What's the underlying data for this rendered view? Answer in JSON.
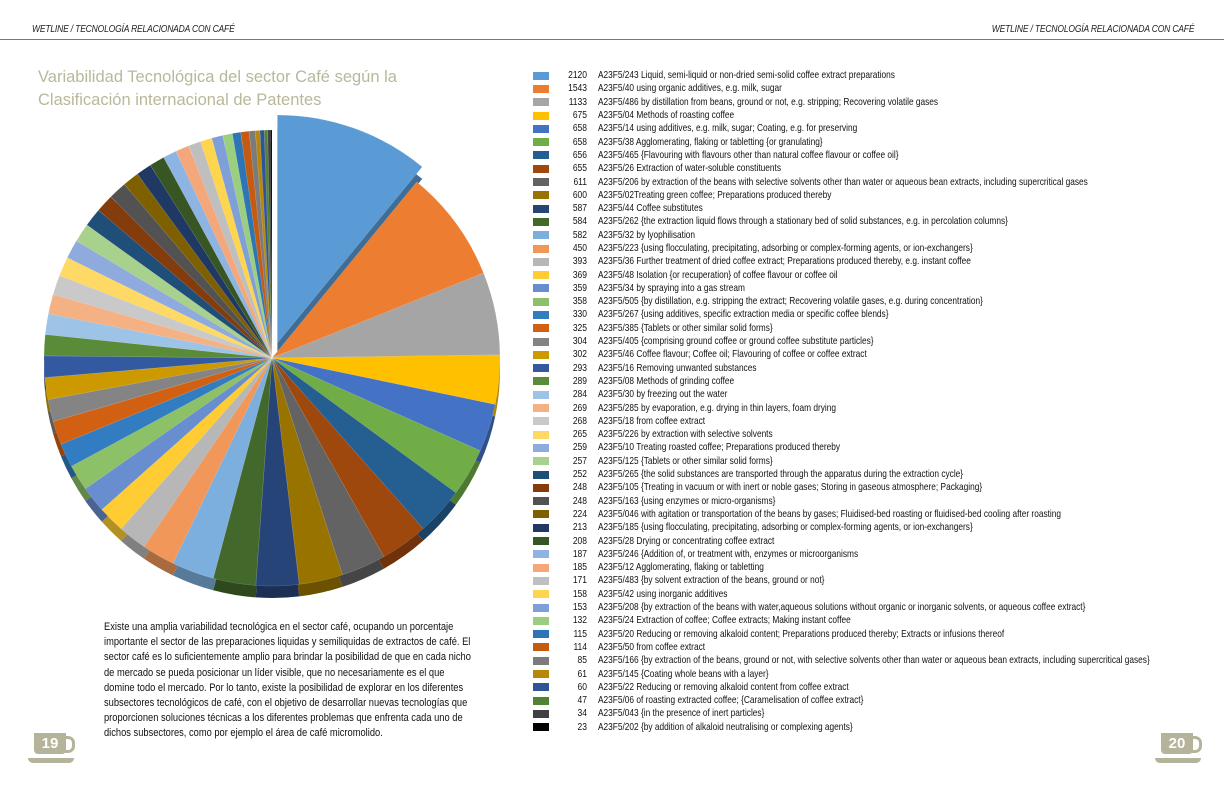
{
  "header": {
    "left": "WETLINE  /  TECNOLOGÍA RELACIONADA CON CAFÉ",
    "right": "WETLINE  /  TECNOLOGÍA RELACIONADA CON CAFÉ"
  },
  "title": "Variabilidad Tecnológica del sector Café según la Clasificación internacional de Patentes",
  "paragraph": "Existe una amplia variabilidad tecnológica en el sector café, ocupando un porcentaje importante el sector de las preparaciones liquidas y semiliquidas de extractos de café. El sector café es lo suficientemente amplio para brindar la posibilidad de que en cada nicho de mercado se pueda posicionar un líder visible, que no necesariamente es el que domine todo el mercado.  Por lo tanto, existe la posibilidad de explorar en los diferentes subsectores tecnológicos de café, con el objetivo de desarrollar nuevas tecnologías que proporcionen soluciones técnicas a los diferentes problemas que enfrenta cada uno de dichos subsectores, como por ejemplo el área de café micromolido.",
  "page_numbers": {
    "left": "19",
    "right": "20"
  },
  "colors": {
    "title": "#b9b89b",
    "cup": "#b5b49a"
  },
  "chart_data": {
    "type": "pie",
    "style": "3d-exploded-first-slice",
    "legend_placement": "right",
    "start": "top",
    "direction": "clockwise",
    "slices": [
      {
        "value": 2120,
        "label": "A23F5/243 Liquid, semi-liquid or non-dried semi-solid coffee extract preparations",
        "color": "#5b9bd5"
      },
      {
        "value": 1543,
        "label": "A23F5/40 using organic additives, e.g. milk, sugar",
        "color": "#ed7d31"
      },
      {
        "value": 1133,
        "label": "A23F5/486 by distillation from beans, ground or not, e.g. stripping; Recovering volatile gases",
        "color": "#a5a5a5"
      },
      {
        "value": 675,
        "label": "A23F5/04 Methods of roasting coffee",
        "color": "#ffc000"
      },
      {
        "value": 658,
        "label": "A23F5/14 using additives, e.g. milk, sugar; Coating, e.g. for preserving",
        "color": "#4472c4"
      },
      {
        "value": 658,
        "label": "A23F5/38 Agglomerating, flaking or tabletting {or granulating}",
        "color": "#70ad47"
      },
      {
        "value": 656,
        "label": "A23F5/465 {Flavouring with flavours other than natural coffee flavour or coffee oil}",
        "color": "#255e91"
      },
      {
        "value": 655,
        "label": "A23F5/26 Extraction of water-soluble constituents",
        "color": "#9e480e"
      },
      {
        "value": 611,
        "label": "A23F5/206 by extraction of the beans with selective solvents other than water or aqueous bean extracts, including supercritical gases",
        "color": "#636363"
      },
      {
        "value": 600,
        "label": "A23F5/02Treating green coffee; Preparations produced thereby",
        "color": "#997300"
      },
      {
        "value": 587,
        "label": "A23F5/44 Coffee substitutes",
        "color": "#264478"
      },
      {
        "value": 584,
        "label": "A23F5/262 {the extraction liquid flows through a stationary bed of solid substances, e.g. in percolation columns}",
        "color": "#43682b"
      },
      {
        "value": 582,
        "label": "A23F5/32 by lyophilisation",
        "color": "#7cafdd"
      },
      {
        "value": 450,
        "label": "A23F5/223 {using flocculating, precipitating, adsorbing or complex-forming agents, or ion-exchangers}",
        "color": "#f1975a"
      },
      {
        "value": 393,
        "label": "A23F5/36 Further treatment of dried coffee extract; Preparations produced thereby, e.g. instant coffee",
        "color": "#b7b7b7"
      },
      {
        "value": 369,
        "label": "A23F5/48 Isolation {or recuperation} of coffee flavour or coffee oil",
        "color": "#ffcd33"
      },
      {
        "value": 359,
        "label": "A23F5/34 by spraying into a gas stream",
        "color": "#698ed0"
      },
      {
        "value": 358,
        "label": "A23F5/505 {by distillation, e.g. stripping the extract; Recovering volatile gases, e.g. during concentration}",
        "color": "#8cc168"
      },
      {
        "value": 330,
        "label": "A23F5/267 {using additives, specific extraction media or specific coffee blends}",
        "color": "#327dc2"
      },
      {
        "value": 325,
        "label": "A23F5/385 {Tablets or other similar solid forms}",
        "color": "#d26012"
      },
      {
        "value": 304,
        "label": "A23F5/405 {comprising ground coffee or ground coffee substitute particles}",
        "color": "#848484"
      },
      {
        "value": 302,
        "label": "A23F5/46 Coffee flavour; Coffee oil; Flavouring of coffee or coffee extract",
        "color": "#cc9a00"
      },
      {
        "value": 293,
        "label": "A23F5/16 Removing unwanted substances",
        "color": "#335aa1"
      },
      {
        "value": 289,
        "label": "A23F5/08 Methods of grinding coffee",
        "color": "#5a8b39"
      },
      {
        "value": 284,
        "label": "A23F5/30 by freezing out the water",
        "color": "#9dc3e6"
      },
      {
        "value": 269,
        "label": "A23F5/285 by evaporation, e.g. drying in thin layers, foam drying",
        "color": "#f4b183"
      },
      {
        "value": 268,
        "label": "A23F5/18 from coffee extract",
        "color": "#c9c9c9"
      },
      {
        "value": 265,
        "label": "A23F5/226 by extraction with selective solvents",
        "color": "#ffd966"
      },
      {
        "value": 259,
        "label": "A23F5/10 Treating roasted coffee; Preparations produced thereby",
        "color": "#8faadc"
      },
      {
        "value": 257,
        "label": "A23F5/125 {Tablets or other similar solid forms}",
        "color": "#a9d18e"
      },
      {
        "value": 252,
        "label": "A23F5/265 {the solid substances are transported through the apparatus during the extraction cycle}",
        "color": "#1f4e79"
      },
      {
        "value": 248,
        "label": "A23F5/105 {Treating in vacuum or with inert or noble gases; Storing in gaseous atmosphere; Packaging}",
        "color": "#843c0c"
      },
      {
        "value": 248,
        "label": "A23F5/163 {using enzymes or micro-organisms}",
        "color": "#525252"
      },
      {
        "value": 224,
        "label": "A23F5/046 with agitation or transportation of the beans by gases; Fluidised-bed roasting or fluidised-bed cooling after roasting",
        "color": "#7f6000"
      },
      {
        "value": 213,
        "label": "A23F5/185 {using flocculating, precipitating, adsorbing or complex-forming agents, or ion-exchangers}",
        "color": "#203864"
      },
      {
        "value": 208,
        "label": "A23F5/28 Drying or concentrating coffee extract",
        "color": "#375623"
      },
      {
        "value": 187,
        "label": "A23F5/246 {Addition of, or treatment with, enzymes or microorganisms",
        "color": "#8db4e2"
      },
      {
        "value": 185,
        "label": "A23F5/12 Agglomerating, flaking or tabletting",
        "color": "#f4a77a"
      },
      {
        "value": 171,
        "label": "A23F5/483 {by solvent extraction of the beans, ground or not}",
        "color": "#bfbfbf"
      },
      {
        "value": 158,
        "label": "A23F5/42 using inorganic additives",
        "color": "#ffd54f"
      },
      {
        "value": 153,
        "label": "A23F5/208 {by extraction of the beans with water,aqueous solutions without organic or inorganic solvents, or aqueous coffee extract}",
        "color": "#7f9fd8"
      },
      {
        "value": 132,
        "label": "A23F5/24 Extraction of coffee; Coffee extracts; Making instant coffee",
        "color": "#9bcf7f"
      },
      {
        "value": 115,
        "label": "A23F5/20 Reducing or removing alkaloid content; Preparations produced thereby; Extracts or infusions thereof",
        "color": "#2e75b6"
      },
      {
        "value": 114,
        "label": "A23F5/50 from coffee extract",
        "color": "#c55a11"
      },
      {
        "value": 85,
        "label": "A23F5/166 {by extraction of the beans, ground or not, with selective solvents other than water or aqueous bean extracts, including supercritical gases}",
        "color": "#7b7b7b"
      },
      {
        "value": 61,
        "label": "A23F5/145 {Coating whole beans with a layer}",
        "color": "#b8860b"
      },
      {
        "value": 60,
        "label": "A23F5/22 Reducing or removing alkaloid content from coffee extract",
        "color": "#2f5597"
      },
      {
        "value": 47,
        "label": "A23F5/06 of roasting extracted coffee; {Caramelisation of coffee extract}",
        "color": "#548235"
      },
      {
        "value": 34,
        "label": "A23F5/043 {in the presence of inert particles}",
        "color": "#404040"
      },
      {
        "value": 23,
        "label": "A23F5/202 {by addition of alkaloid neutralising or complexing agents}",
        "color": "#000000"
      }
    ]
  }
}
